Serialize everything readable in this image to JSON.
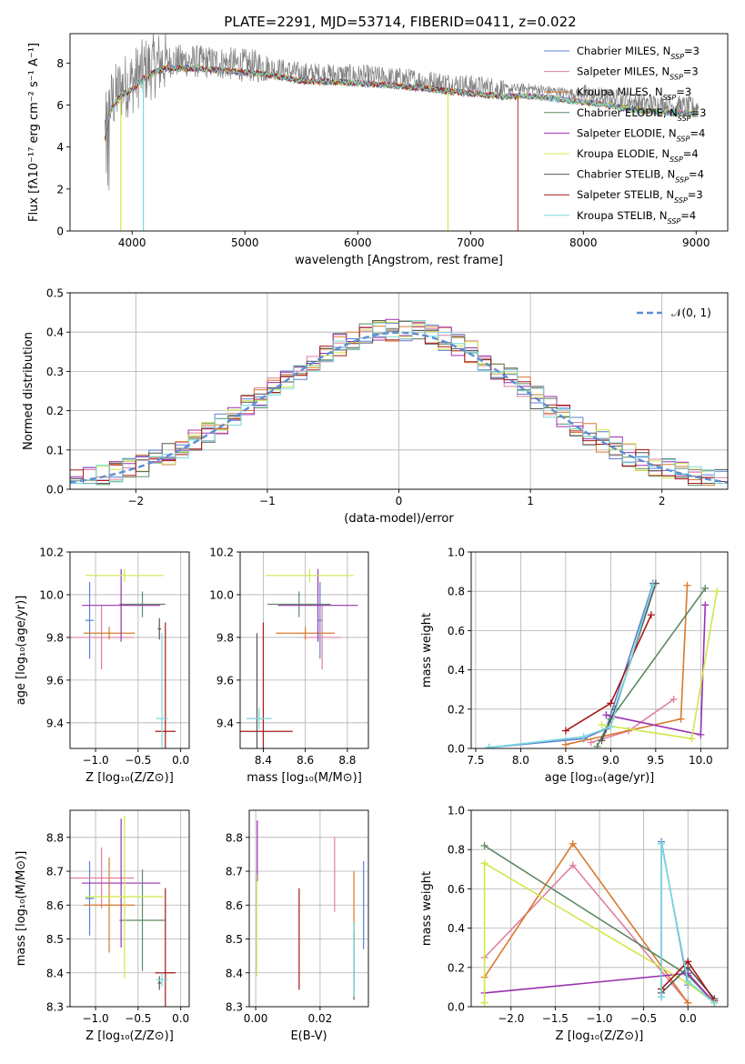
{
  "figure": {
    "title": "PLATE=2291, MJD=53714, FIBERID=0411, z=0.022"
  },
  "colors": {
    "chabrier_miles": "#5b7fd6",
    "salpeter_miles": "#e07fa0",
    "kroupa_miles": "#d97a2b",
    "chabrier_elodie": "#5f8a64",
    "salpeter_elodie": "#9b30b0",
    "kroupa_elodie": "#cfe84a",
    "chabrier_stelib": "#555555",
    "salpeter_stelib": "#a81818",
    "kroupa_stelib": "#79d9db",
    "data": "#808080",
    "normal_curve": "#5b8ed6",
    "grid": "#b0b0b0"
  },
  "legend": {
    "entries": [
      {
        "key": "chabrier_miles",
        "label": "Chabrier MILES, N",
        "sub": "SSP",
        "tail": "=3"
      },
      {
        "key": "salpeter_miles",
        "label": "Salpeter MILES, N",
        "sub": "SSP",
        "tail": "=3"
      },
      {
        "key": "kroupa_miles",
        "label": "Kroupa MILES, N",
        "sub": "SSP",
        "tail": "=3"
      },
      {
        "key": "chabrier_elodie",
        "label": "Chabrier ELODIE, N",
        "sub": "SSP",
        "tail": "=3"
      },
      {
        "key": "salpeter_elodie",
        "label": "Salpeter ELODIE, N",
        "sub": "SSP",
        "tail": "=4"
      },
      {
        "key": "kroupa_elodie",
        "label": "Kroupa ELODIE, N",
        "sub": "SSP",
        "tail": "=4"
      },
      {
        "key": "chabrier_stelib",
        "label": "Chabrier STELIB, N",
        "sub": "SSP",
        "tail": "=4"
      },
      {
        "key": "salpeter_stelib",
        "label": "Salpeter STELIB, N",
        "sub": "SSP",
        "tail": "=3"
      },
      {
        "key": "kroupa_stelib",
        "label": "Kroupa STELIB, N",
        "sub": "SSP",
        "tail": "=4"
      }
    ],
    "normal_label": "𝒩(0, 1)"
  },
  "chart_data": [
    {
      "id": "spectrum",
      "type": "line",
      "xlabel": "wavelength [Angstrom, rest frame]",
      "ylabel": "Flux [fλ10⁻¹⁷ erg cm⁻² s⁻¹ A⁻¹]",
      "xlim": [
        3450,
        9280
      ],
      "ylim": [
        0,
        9.4
      ],
      "xticks": [
        4000,
        5000,
        6000,
        7000,
        8000,
        9000
      ],
      "yticks": [
        0,
        2,
        4,
        6,
        8
      ],
      "continuum": {
        "x": [
          3750,
          3800,
          3900,
          4000,
          4100,
          4200,
          4300,
          4500,
          4800,
          5000,
          5200,
          5500,
          6000,
          6500,
          7000,
          7300,
          7500,
          8000,
          8500,
          9000
        ],
        "y": [
          4.5,
          6.0,
          6.8,
          7.1,
          7.6,
          7.9,
          8.1,
          8.1,
          8.0,
          7.9,
          7.8,
          7.5,
          7.4,
          7.2,
          6.9,
          6.75,
          6.8,
          6.5,
          6.1,
          5.9
        ]
      },
      "model_drops": {
        "kroupa_elodie": [
          3900,
          6800
        ],
        "salpeter_stelib": [
          7420
        ],
        "kroupa_stelib": [
          4100
        ]
      }
    },
    {
      "id": "residuals",
      "type": "bar",
      "xlabel": "(data-model)/error",
      "ylabel": "Normed distribution",
      "xlim": [
        -2.5,
        2.5
      ],
      "ylim": [
        0,
        0.5
      ],
      "xticks": [
        -2,
        -1,
        0,
        1,
        2
      ],
      "yticks": [
        0.0,
        0.1,
        0.2,
        0.3,
        0.4,
        0.5
      ],
      "bin_width": 0.1,
      "normal": {
        "mu": 0,
        "sigma": 1
      }
    },
    {
      "id": "age_vs_Z",
      "type": "scatter",
      "xlabel": "Z [log₁₀(Z/Z⊙)]",
      "ylabel": "age  [log₁₀(age/yr)]",
      "xlim": [
        -1.3,
        0.1
      ],
      "ylim": [
        9.28,
        10.2
      ],
      "xticks": [
        -1.0,
        -0.5,
        0.0
      ],
      "yticks": [
        9.4,
        9.6,
        9.8,
        10.0,
        10.2
      ],
      "points": [
        {
          "key": "chabrier_miles",
          "x": -1.07,
          "xerr": 0.05,
          "y": 9.88,
          "yerr": 0.18
        },
        {
          "key": "salpeter_miles",
          "x": -0.93,
          "xerr": 0.38,
          "y": 9.8,
          "yerr": 0.15
        },
        {
          "key": "kroupa_miles",
          "x": -0.84,
          "xerr": 0.3,
          "y": 9.82,
          "yerr": 0.03
        },
        {
          "key": "chabrier_elodie",
          "x": -0.45,
          "xerr": 0.27,
          "y": 9.955,
          "yerr": 0.06
        },
        {
          "key": "salpeter_elodie",
          "x": -0.7,
          "xerr": 0.46,
          "y": 9.95,
          "yerr": 0.17
        },
        {
          "key": "kroupa_elodie",
          "x": -0.66,
          "xerr": 0.46,
          "y": 10.09,
          "yerr": 0.03
        },
        {
          "key": "chabrier_stelib",
          "x": -0.25,
          "xerr": 0.02,
          "y": 9.84,
          "yerr": 0.05
        },
        {
          "key": "salpeter_stelib",
          "x": -0.18,
          "xerr": 0.12,
          "y": 9.36,
          "yerr": 0.51
        },
        {
          "key": "kroupa_stelib",
          "x": -0.22,
          "xerr": 0.07,
          "y": 9.42,
          "yerr": 0.4
        }
      ]
    },
    {
      "id": "age_vs_mass",
      "type": "scatter",
      "xlabel": "mass [log₁₀(M/M⊙)]",
      "ylabel": "",
      "xlim": [
        8.29,
        8.9
      ],
      "ylim": [
        9.28,
        10.2
      ],
      "xticks": [
        8.4,
        8.6,
        8.8
      ],
      "yticks": [
        9.4,
        9.6,
        9.8,
        10.0,
        10.2
      ],
      "points": [
        {
          "key": "chabrier_miles",
          "x": 8.67,
          "xerr": 0.01,
          "y": 9.88,
          "yerr": 0.18
        },
        {
          "key": "salpeter_miles",
          "x": 8.68,
          "xerr": 0.09,
          "y": 9.8,
          "yerr": 0.15
        },
        {
          "key": "kroupa_miles",
          "x": 8.6,
          "xerr": 0.14,
          "y": 9.82,
          "yerr": 0.03
        },
        {
          "key": "chabrier_elodie",
          "x": 8.57,
          "xerr": 0.15,
          "y": 9.955,
          "yerr": 0.06
        },
        {
          "key": "salpeter_elodie",
          "x": 8.66,
          "xerr": 0.19,
          "y": 9.95,
          "yerr": 0.17
        },
        {
          "key": "kroupa_elodie",
          "x": 8.62,
          "xerr": 0.21,
          "y": 10.09,
          "yerr": 0.03
        },
        {
          "key": "chabrier_stelib",
          "x": 8.37,
          "xerr": 0.01,
          "y": 9.42,
          "yerr": 0.4
        },
        {
          "key": "salpeter_stelib",
          "x": 8.4,
          "xerr": 0.14,
          "y": 9.36,
          "yerr": 0.51
        },
        {
          "key": "kroupa_stelib",
          "x": 8.38,
          "xerr": 0.06,
          "y": 9.42,
          "yerr": 0.05
        }
      ]
    },
    {
      "id": "mass_weight_vs_age",
      "type": "line",
      "xlabel": "age  [log₁₀(age/yr)]",
      "ylabel": "mass weight",
      "xlim": [
        7.45,
        10.3
      ],
      "ylim": [
        0,
        1.0
      ],
      "xticks": [
        7.5,
        8.0,
        8.5,
        9.0,
        9.5,
        10.0
      ],
      "yticks": [
        0.0,
        0.2,
        0.4,
        0.6,
        0.8,
        1.0
      ],
      "series": [
        {
          "key": "chabrier_miles",
          "x": [
            7.65,
            8.7,
            8.95,
            9.47
          ],
          "y": [
            0.005,
            0.05,
            0.1,
            0.84
          ]
        },
        {
          "key": "salpeter_miles",
          "x": [
            8.78,
            9.2,
            9.7
          ],
          "y": [
            0.03,
            0.09,
            0.25
          ]
        },
        {
          "key": "kroupa_miles",
          "x": [
            8.5,
            9.78,
            9.85
          ],
          "y": [
            0.02,
            0.15,
            0.83
          ]
        },
        {
          "key": "chabrier_elodie",
          "x": [
            8.85,
            9.0,
            10.05
          ],
          "y": [
            0.01,
            0.15,
            0.815
          ]
        },
        {
          "key": "salpeter_elodie",
          "x": [
            8.95,
            10.0,
            10.05
          ],
          "y": [
            0.17,
            0.07,
            0.73
          ]
        },
        {
          "key": "kroupa_elodie",
          "x": [
            8.9,
            9.9,
            10.18
          ],
          "y": [
            0.12,
            0.05,
            0.8
          ]
        },
        {
          "key": "chabrier_stelib",
          "x": [
            8.9,
            9.05,
            9.5
          ],
          "y": [
            0.04,
            0.2,
            0.84
          ]
        },
        {
          "key": "salpeter_stelib",
          "x": [
            8.5,
            9.0,
            9.45
          ],
          "y": [
            0.09,
            0.23,
            0.68
          ]
        },
        {
          "key": "kroupa_stelib",
          "x": [
            7.65,
            8.7,
            9.0,
            9.47
          ],
          "y": [
            0.005,
            0.06,
            0.11,
            0.83
          ]
        }
      ]
    },
    {
      "id": "mass_vs_Z",
      "type": "scatter",
      "xlabel": "Z [log₁₀(Z/Z⊙)]",
      "ylabel": "mass [log₁₀(M/M⊙)]",
      "xlim": [
        -1.3,
        0.1
      ],
      "ylim": [
        8.3,
        8.88
      ],
      "xticks": [
        -1.0,
        -0.5,
        0.0
      ],
      "yticks": [
        8.3,
        8.4,
        8.5,
        8.6,
        8.7,
        8.8
      ],
      "points": [
        {
          "key": "chabrier_miles",
          "x": -1.07,
          "xerr": 0.05,
          "y": 8.62,
          "yerr": 0.11
        },
        {
          "key": "salpeter_miles",
          "x": -0.93,
          "xerr": 0.38,
          "y": 8.68,
          "yerr": 0.09
        },
        {
          "key": "kroupa_miles",
          "x": -0.84,
          "xerr": 0.3,
          "y": 8.6,
          "yerr": 0.14
        },
        {
          "key": "chabrier_elodie",
          "x": -0.45,
          "xerr": 0.27,
          "y": 8.555,
          "yerr": 0.15
        },
        {
          "key": "salpeter_elodie",
          "x": -0.7,
          "xerr": 0.46,
          "y": 8.665,
          "yerr": 0.19
        },
        {
          "key": "kroupa_elodie",
          "x": -0.66,
          "xerr": 0.46,
          "y": 8.625,
          "yerr": 0.24
        },
        {
          "key": "chabrier_stelib",
          "x": -0.25,
          "xerr": 0.02,
          "y": 8.37,
          "yerr": 0.02
        },
        {
          "key": "salpeter_stelib",
          "x": -0.18,
          "xerr": 0.12,
          "y": 8.4,
          "yerr": 0.25
        },
        {
          "key": "kroupa_stelib",
          "x": -0.22,
          "xerr": 0.07,
          "y": 8.38,
          "yerr": 0.02
        }
      ]
    },
    {
      "id": "mass_vs_ebv",
      "type": "scatter",
      "xlabel": "E(B-V)",
      "ylabel": "",
      "xlim": [
        -0.002,
        0.035
      ],
      "ylim": [
        8.3,
        8.88
      ],
      "xticks": [
        0.0,
        0.02
      ],
      "yticks": [
        8.3,
        8.4,
        8.5,
        8.6,
        8.7,
        8.8
      ],
      "points": [
        {
          "key": "chabrier_miles",
          "x": 0.0335,
          "y": 8.6,
          "yerr": 0.13
        },
        {
          "key": "salpeter_miles",
          "x": 0.0245,
          "y": 8.69,
          "yerr": 0.11
        },
        {
          "key": "kroupa_miles",
          "x": 0.0305,
          "y": 8.6,
          "yerr": 0.1
        },
        {
          "key": "chabrier_elodie",
          "x": 0.0305,
          "y": 8.45,
          "yerr": 0.1
        },
        {
          "key": "salpeter_elodie",
          "x": 0.0005,
          "y": 8.76,
          "yerr": 0.09
        },
        {
          "key": "kroupa_elodie",
          "x": 0.0003,
          "y": 8.54,
          "yerr": 0.15
        },
        {
          "key": "chabrier_stelib",
          "x": 0.0305,
          "y": 8.42,
          "yerr": 0.1
        },
        {
          "key": "salpeter_stelib",
          "x": 0.0135,
          "y": 8.5,
          "yerr": 0.15
        },
        {
          "key": "kroupa_stelib",
          "x": 0.0305,
          "y": 8.44,
          "yerr": 0.11
        }
      ]
    },
    {
      "id": "mass_weight_vs_Z",
      "type": "line",
      "xlabel": "Z [log₁₀(Z/Z⊙)]",
      "ylabel": "mass weight",
      "xlim": [
        -2.45,
        0.45
      ],
      "ylim": [
        0,
        1.0
      ],
      "xticks": [
        -2.0,
        -1.5,
        -1.0,
        -0.5,
        0.0
      ],
      "yticks": [
        0.0,
        0.2,
        0.4,
        0.6,
        0.8,
        1.0
      ],
      "series": [
        {
          "key": "chabrier_miles",
          "x": [
            -0.3,
            -0.3,
            0.0
          ],
          "y": [
            0.05,
            0.84,
            0.11
          ]
        },
        {
          "key": "salpeter_miles",
          "x": [
            -2.3,
            -1.3,
            0.0
          ],
          "y": [
            0.25,
            0.72,
            0.02
          ]
        },
        {
          "key": "kroupa_miles",
          "x": [
            -2.3,
            -1.3,
            0.0
          ],
          "y": [
            0.15,
            0.83,
            0.02
          ]
        },
        {
          "key": "chabrier_elodie",
          "x": [
            -2.3,
            0.0,
            0.3
          ],
          "y": [
            0.82,
            0.16,
            0.02
          ]
        },
        {
          "key": "salpeter_elodie",
          "x": [
            -2.3,
            0.0,
            0.3
          ],
          "y": [
            0.07,
            0.17,
            0.02
          ]
        },
        {
          "key": "kroupa_elodie",
          "x": [
            -2.3,
            -2.3,
            0.0,
            0.3
          ],
          "y": [
            0.02,
            0.73,
            0.12,
            0.02
          ]
        },
        {
          "key": "chabrier_stelib",
          "x": [
            -0.3,
            0.0,
            0.3
          ],
          "y": [
            0.07,
            0.2,
            0.04
          ]
        },
        {
          "key": "salpeter_stelib",
          "x": [
            -0.3,
            0.0,
            0.3
          ],
          "y": [
            0.09,
            0.23,
            0.03
          ]
        },
        {
          "key": "kroupa_stelib",
          "x": [
            -0.3,
            -0.3,
            0.0,
            0.3
          ],
          "y": [
            0.05,
            0.83,
            0.13,
            0.02
          ]
        }
      ]
    }
  ]
}
